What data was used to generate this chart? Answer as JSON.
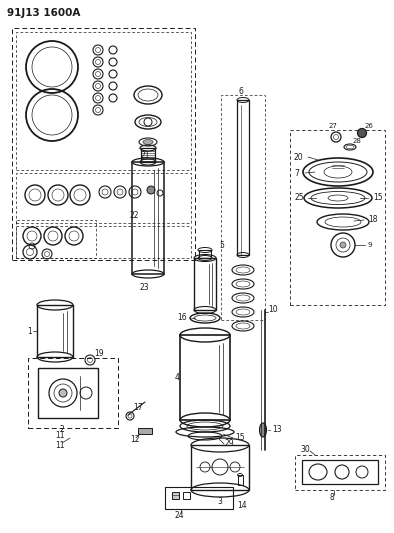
{
  "title": "91J13 1600A",
  "bg_color": "#ffffff",
  "line_color": "#1a1a1a",
  "fig_width": 3.94,
  "fig_height": 5.33,
  "dpi": 100
}
